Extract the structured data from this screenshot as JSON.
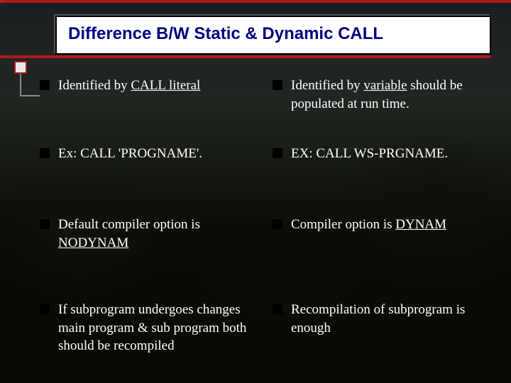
{
  "colors": {
    "accent_red": "#b01818",
    "title_blue": "#000080",
    "text_white": "#ffffff",
    "bullet_black": "#000000",
    "title_bg": "#ffffff",
    "page_bg": "#000000"
  },
  "typography": {
    "title_fontsize": 24,
    "title_weight": "bold",
    "title_family": "Verdana",
    "body_fontsize": 19,
    "body_family": "Georgia"
  },
  "title": "Difference B/W Static & Dynamic CALL",
  "left": {
    "items": [
      {
        "pre": "Identified by ",
        "u": "CALL literal",
        "post": ""
      },
      {
        "pre": "Ex: CALL 'PROGNAME'.",
        "u": "",
        "post": ""
      },
      {
        "pre": "Default compiler option is ",
        "u": "NODYNAM",
        "post": ""
      },
      {
        "pre": "If subprogram undergoes changes main program & sub program both should be recompiled",
        "u": "",
        "post": ""
      }
    ]
  },
  "right": {
    "items": [
      {
        "pre": "Identified by ",
        "u": "variable",
        "post": " should be populated at run time."
      },
      {
        "pre": "EX: CALL WS-PRGNAME.",
        "u": "",
        "post": ""
      },
      {
        "pre": "Compiler option is ",
        "u": "DYNAM",
        "post": ""
      },
      {
        "pre": "Recompilation of subprogram is enough",
        "u": "",
        "post": ""
      }
    ]
  }
}
